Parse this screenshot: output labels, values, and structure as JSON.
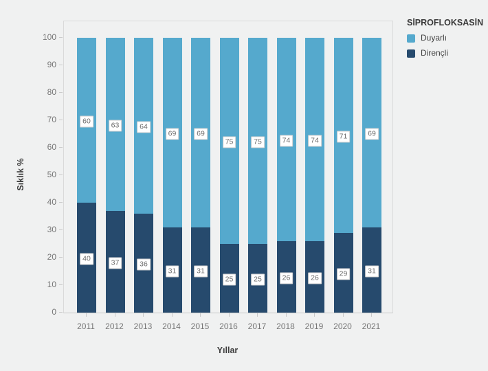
{
  "page": {
    "background": "#f0f1f1"
  },
  "chart_data": {
    "type": "bar",
    "stacked": true,
    "orientation": "vertical",
    "categories": [
      "2011",
      "2012",
      "2013",
      "2014",
      "2015",
      "2016",
      "2017",
      "2018",
      "2019",
      "2020",
      "2021"
    ],
    "series": [
      {
        "name": "Duyarlı",
        "color": "#55a9cd",
        "values": [
          60,
          63,
          64,
          69,
          69,
          75,
          75,
          74,
          74,
          71,
          69
        ]
      },
      {
        "name": "Dirençli",
        "color": "#264a6d",
        "values": [
          40,
          37,
          36,
          31,
          31,
          25,
          25,
          26,
          26,
          29,
          31
        ]
      }
    ],
    "stack_order_bottom_to_top": [
      "Dirençli",
      "Duyarlı"
    ],
    "title": "",
    "xlabel": "Yıllar",
    "ylabel": "Sıklık %",
    "ylim": [
      0,
      100
    ],
    "yticks": [
      0,
      10,
      20,
      30,
      40,
      50,
      60,
      70,
      80,
      90,
      100
    ],
    "grid": false,
    "bar_value_labels": true,
    "legend_position": "top-right"
  },
  "legend": {
    "title": "SİPROFLOKSASİN",
    "items": [
      {
        "label": "Duyarlı",
        "color": "#55a9cd"
      },
      {
        "label": "Dirençli",
        "color": "#264a6d"
      }
    ]
  },
  "axes": {
    "y_title": "Sıklık %",
    "x_title": "Yıllar"
  }
}
